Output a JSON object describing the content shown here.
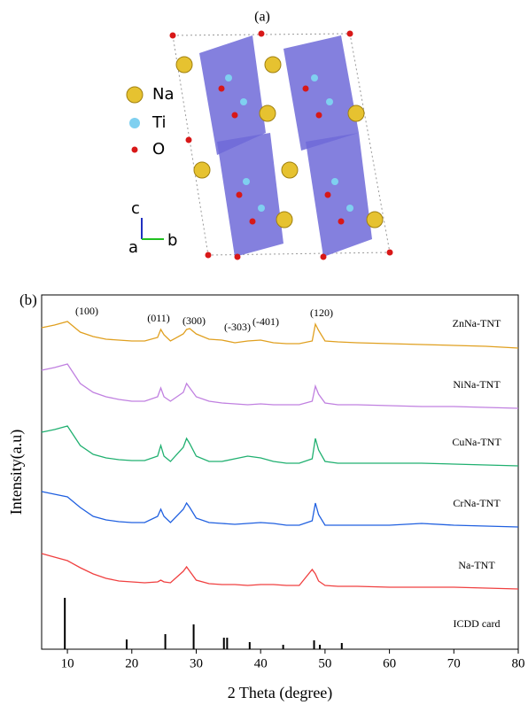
{
  "panel_a": {
    "label": "(a)",
    "legend": [
      "Na",
      "Ti",
      "O"
    ],
    "axes": [
      "c",
      "a",
      "b"
    ]
  },
  "chart_data": {
    "type": "line",
    "panel_label": "(b)",
    "x_label": "2 Theta (degree)",
    "y_label": "Intensity(a.u)",
    "xlim": [
      6,
      80
    ],
    "xticks": [
      10,
      20,
      30,
      40,
      50,
      60,
      70,
      80
    ],
    "ylim": [
      0,
      400
    ],
    "x": [
      6,
      8,
      10,
      12,
      14,
      16,
      18,
      20,
      22,
      24,
      24.5,
      25,
      26,
      28,
      28.5,
      29,
      30,
      32,
      34,
      36,
      38,
      40,
      42,
      44,
      46,
      48,
      48.5,
      49,
      50,
      52,
      55,
      60,
      65,
      70,
      75,
      80
    ],
    "series": [
      {
        "name": "ZnNa-TNT",
        "color": "#e0a020",
        "values": [
          363,
          366,
          370,
          358,
          353,
          350,
          349,
          348,
          348,
          352,
          361,
          355,
          348,
          356,
          361,
          362,
          356,
          350,
          349,
          346,
          348,
          349,
          346,
          345,
          345,
          348,
          367,
          360,
          348,
          347,
          346,
          345,
          344,
          343,
          342,
          340
        ]
      },
      {
        "name": "NiNa-TNT",
        "color": "#c080e0",
        "values": [
          315,
          318,
          322,
          300,
          290,
          285,
          282,
          280,
          280,
          285,
          295,
          285,
          280,
          290,
          300,
          295,
          285,
          280,
          278,
          277,
          276,
          277,
          276,
          276,
          276,
          280,
          297,
          288,
          278,
          276,
          276,
          275,
          274,
          274,
          273,
          272
        ]
      },
      {
        "name": "CuNa-TNT",
        "color": "#20b070",
        "values": [
          245,
          248,
          252,
          230,
          220,
          216,
          214,
          213,
          213,
          218,
          230,
          218,
          212,
          228,
          238,
          232,
          218,
          212,
          212,
          215,
          218,
          216,
          212,
          210,
          210,
          215,
          238,
          225,
          212,
          210,
          210,
          210,
          210,
          209,
          208,
          207
        ]
      },
      {
        "name": "CrNa-TNT",
        "color": "#2060e0",
        "values": [
          178,
          175,
          172,
          160,
          150,
          146,
          144,
          143,
          143,
          150,
          158,
          150,
          143,
          158,
          165,
          160,
          148,
          143,
          142,
          141,
          142,
          143,
          142,
          140,
          140,
          145,
          165,
          152,
          140,
          140,
          140,
          140,
          142,
          140,
          139,
          138
        ]
      },
      {
        "name": "Na-TNT",
        "color": "#f04040",
        "values": [
          108,
          104,
          100,
          92,
          85,
          80,
          77,
          76,
          75,
          76,
          78,
          76,
          75,
          88,
          93,
          88,
          78,
          74,
          73,
          73,
          72,
          73,
          73,
          72,
          72,
          90,
          85,
          77,
          72,
          71,
          71,
          70,
          70,
          70,
          69,
          68
        ]
      }
    ],
    "reference": {
      "name": "ICDD card",
      "color": "#000000",
      "x": [
        9.6,
        19.2,
        25.2,
        29.6,
        34.3,
        34.8,
        38.3,
        43.5,
        48.3,
        49.2,
        52.6
      ],
      "values": [
        58,
        11,
        17,
        28,
        13,
        13,
        8,
        5,
        10,
        5,
        7
      ]
    },
    "annotations": [
      "(100)",
      "(011)",
      "(300)",
      "(-303)",
      "(-401)",
      "(120)"
    ]
  }
}
